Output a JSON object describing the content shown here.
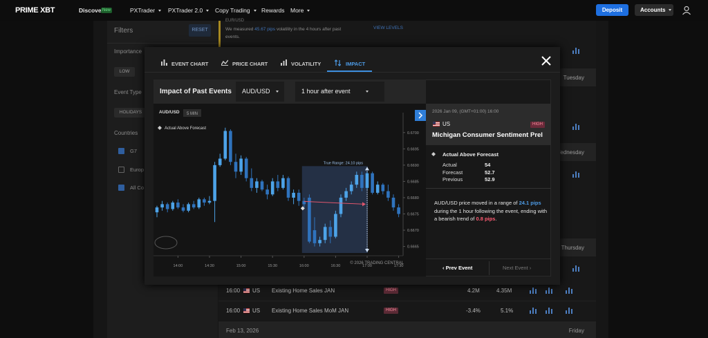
{
  "nav": {
    "logo": "PRIME XBT",
    "items": [
      "Discover",
      "PXTrader",
      "PXTrader 2.0",
      "Copy Trading",
      "Rewards",
      "More"
    ],
    "badge": "New",
    "deposit": "Deposit",
    "accounts": "Accounts"
  },
  "sidebar": {
    "title": "Filters",
    "reset": "RESET",
    "importance": "Importance",
    "importance_option": "LOW",
    "event_type": "Event Type",
    "event_type_option": "HOLIDAYS",
    "countries": "Countries",
    "country_options": [
      "G7",
      "Europ",
      "All Co"
    ]
  },
  "notice": {
    "pair": "EUR/USD",
    "before": "We measured ",
    "highlight": "45.67 pips",
    "after": " volatility in the 4 hours after past events.",
    "link": "VIEW LEVELS"
  },
  "calendar": {
    "days": [
      "Tuesday",
      "Wednesday",
      "Thursday"
    ],
    "rows": [
      {
        "time": "16:00",
        "country": "US",
        "event": "Existing Home Sales JAN",
        "impact": "HIGH",
        "actual": "4.2M",
        "forecast": "4.35M"
      },
      {
        "time": "16:00",
        "country": "US",
        "event": "Existing Home Sales MoM JAN",
        "impact": "HIGH",
        "actual": "-3.4%",
        "forecast": "5.1%"
      }
    ],
    "footer_date": "Feb 13, 2026",
    "footer_day": "Friday"
  },
  "modal": {
    "tabs": [
      "EVENT CHART",
      "PRICE CHART",
      "VOLATILITY",
      "IMPACT"
    ],
    "header": {
      "title": "Impact of Past Events",
      "pair": "AUD/USD",
      "window": "1 hour after event"
    },
    "chart": {
      "type": "candlestick",
      "symbol": "AUD/USD",
      "interval": "5 MIN",
      "legend": "Actual Above Forecast",
      "range_label": "True Range: 24.10 pips",
      "copyright": "© 2026 TRADING CENTRAL",
      "up_color": "#4da3e8",
      "down_color": "#2f73bd",
      "xlim": [
        -0.5,
        46.5
      ],
      "xticks": [
        {
          "value": 4,
          "label": "14:00"
        },
        {
          "value": 10,
          "label": "14:30"
        },
        {
          "value": 16,
          "label": "15:00"
        },
        {
          "value": 22,
          "label": "15:30"
        },
        {
          "value": 28,
          "label": "16:00"
        },
        {
          "value": 34,
          "label": "16:30"
        },
        {
          "value": 40,
          "label": "17:00"
        },
        {
          "value": 46,
          "label": "17:30"
        }
      ],
      "ylim": [
        0.6663,
        0.6704
      ],
      "yticks": [
        0.6665,
        {
          "value": 0.667,
          "label": "0.6670"
        },
        0.6675,
        {
          "value": 0.668,
          "label": "0.6680"
        },
        0.6685,
        {
          "value": 0.669,
          "label": "0.6690"
        },
        0.6695,
        {
          "value": 0.67,
          "label": "0.6700"
        }
      ],
      "open": [
        0.66755,
        0.6677,
        0.6678,
        0.66765,
        0.66785,
        0.6677,
        0.6676,
        0.6678,
        0.6677,
        0.66795,
        0.66785,
        0.6679,
        0.669,
        0.6692,
        0.67005,
        0.6691,
        0.6688,
        0.6692,
        0.6686,
        0.6683,
        0.6685,
        0.66825,
        0.6681,
        0.6685,
        0.6683,
        0.6686,
        0.668,
        0.66815,
        0.6679,
        0.668,
        0.667,
        0.6666,
        0.6667,
        0.6671,
        0.6668,
        0.6675,
        0.668,
        0.6682,
        0.6684,
        0.6687,
        0.6683,
        0.66875,
        0.66815,
        0.6684,
        0.6682,
        0.668,
        0.6677
      ],
      "high": [
        0.66775,
        0.6679,
        0.66785,
        0.6679,
        0.66795,
        0.6678,
        0.66785,
        0.6679,
        0.668,
        0.668,
        0.66805,
        0.6691,
        0.66935,
        0.67015,
        0.6701,
        0.66935,
        0.6693,
        0.66925,
        0.6689,
        0.6686,
        0.66855,
        0.6684,
        0.6686,
        0.6687,
        0.6687,
        0.66865,
        0.66825,
        0.66825,
        0.668,
        0.6681,
        0.6674,
        0.6668,
        0.6672,
        0.6673,
        0.6676,
        0.6681,
        0.6683,
        0.6685,
        0.6688,
        0.6688,
        0.6688,
        0.6688,
        0.6685,
        0.66845,
        0.6684,
        0.6681,
        0.6678
      ],
      "low": [
        0.6674,
        0.6676,
        0.66755,
        0.6676,
        0.66765,
        0.66755,
        0.66755,
        0.66765,
        0.66765,
        0.66775,
        0.6678,
        0.66725,
        0.66895,
        0.66915,
        0.669,
        0.6686,
        0.6687,
        0.6685,
        0.6682,
        0.66815,
        0.6682,
        0.66795,
        0.66805,
        0.6682,
        0.66825,
        0.6679,
        0.6678,
        0.66775,
        0.6677,
        0.6666,
        0.6665,
        0.6665,
        0.6666,
        0.6666,
        0.66675,
        0.6674,
        0.6679,
        0.6681,
        0.6683,
        0.6682,
        0.66825,
        0.6681,
        0.6681,
        0.6681,
        0.6679,
        0.6676,
        0.6674
      ],
      "close": [
        0.6677,
        0.6678,
        0.66765,
        0.66785,
        0.6677,
        0.6676,
        0.6678,
        0.6677,
        0.66795,
        0.66785,
        0.6679,
        0.669,
        0.6692,
        0.67005,
        0.6691,
        0.6688,
        0.6692,
        0.6686,
        0.6683,
        0.6685,
        0.66825,
        0.6681,
        0.6685,
        0.6683,
        0.6686,
        0.668,
        0.66815,
        0.6679,
        0.6678,
        0.66665,
        0.6666,
        0.6667,
        0.6671,
        0.6668,
        0.6675,
        0.668,
        0.6682,
        0.6684,
        0.6687,
        0.6683,
        0.66875,
        0.66815,
        0.6684,
        0.6682,
        0.668,
        0.6677,
        0.6675
      ]
    },
    "event": {
      "datetime": "2026 Jan 09, (GMT+01:00) 16:00",
      "country": "US",
      "impact": "HIGH",
      "name": "Michigan Consumer Sentiment Prel",
      "result": "Actual Above Forecast",
      "fields": [
        {
          "label": "Actual",
          "value": 54
        },
        {
          "label": "Forecast",
          "value": 52.7
        },
        {
          "label": "Previous",
          "value": 52.9
        }
      ]
    },
    "summary": {
      "before": "AUD/USD price moved in a range of ",
      "range": "24.1 pips",
      "middle": " during the 1 hour following the event, ending with a bearish trend of ",
      "trend": "0.8 pips",
      "after": "."
    },
    "buttons": {
      "prev": "Prev Event",
      "next": "Next Event"
    }
  }
}
